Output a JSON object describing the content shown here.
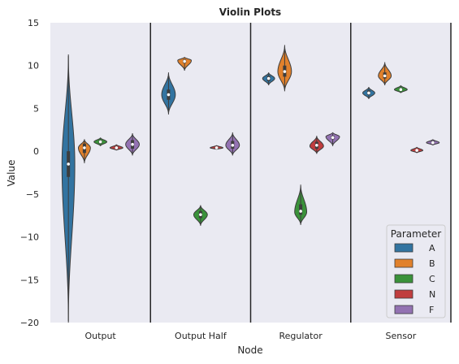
{
  "chart_data": {
    "type": "violin",
    "title": "Violin Plots",
    "xlabel": "Node",
    "ylabel": "Value",
    "ylim": [
      -20,
      15
    ],
    "yticks": [
      15,
      10,
      5,
      0,
      -5,
      -10,
      -15,
      -20
    ],
    "categories": [
      "Output",
      "Output Half",
      "Regulator",
      "Sensor"
    ],
    "legend": {
      "title": "Parameter",
      "placement": "bottom-right",
      "entries": [
        "A",
        "B",
        "C",
        "N",
        "F"
      ]
    },
    "colors": {
      "A": "#3274a1",
      "B": "#e1812c",
      "C": "#3a923a",
      "N": "#c03d3e",
      "F": "#9372b2"
    },
    "background": "#eaeaf2",
    "series": [
      {
        "name": "A",
        "violins": [
          {
            "category": "Output",
            "min": -20.0,
            "q1": -3.0,
            "median": -1.5,
            "q3": 0.0,
            "max": 11.3,
            "mode": -1.5,
            "maxwidth": 0.8
          },
          {
            "category": "Output Half",
            "min": 4.3,
            "q1": 6.0,
            "median": 6.6,
            "q3": 7.2,
            "max": 9.2,
            "mode": 6.6,
            "maxwidth": 0.85
          },
          {
            "category": "Regulator",
            "min": 7.7,
            "q1": 8.2,
            "median": 8.5,
            "q3": 8.8,
            "max": 9.2,
            "mode": 8.5,
            "maxwidth": 0.75
          },
          {
            "category": "Sensor",
            "min": 6.1,
            "q1": 6.6,
            "median": 6.8,
            "q3": 7.1,
            "max": 7.5,
            "mode": 6.8,
            "maxwidth": 0.75
          }
        ]
      },
      {
        "name": "B",
        "violins": [
          {
            "category": "Output",
            "min": -1.4,
            "q1": -0.2,
            "median": 0.4,
            "q3": 0.9,
            "max": 1.4,
            "mode": 0.4,
            "maxwidth": 0.75
          },
          {
            "category": "Output Half",
            "min": 9.4,
            "q1": 10.3,
            "median": 10.5,
            "q3": 10.7,
            "max": 11.0,
            "mode": 10.6,
            "maxwidth": 0.85
          },
          {
            "category": "Regulator",
            "min": 7.0,
            "q1": 8.7,
            "median": 9.3,
            "q3": 10.0,
            "max": 12.4,
            "mode": 9.3,
            "maxwidth": 0.85
          },
          {
            "category": "Sensor",
            "min": 7.7,
            "q1": 8.5,
            "median": 8.8,
            "q3": 9.2,
            "max": 10.4,
            "mode": 8.8,
            "maxwidth": 0.8
          }
        ]
      },
      {
        "name": "C",
        "violins": [
          {
            "category": "Output",
            "min": 0.6,
            "q1": 0.9,
            "median": 1.1,
            "q3": 1.3,
            "max": 1.6,
            "mode": 1.1,
            "maxwidth": 0.8
          },
          {
            "category": "Output Half",
            "min": -8.7,
            "q1": -7.8,
            "median": -7.4,
            "q3": -7.0,
            "max": -6.3,
            "mode": -7.4,
            "maxwidth": 0.85
          },
          {
            "category": "Regulator",
            "min": -8.6,
            "q1": -7.4,
            "median": -7.0,
            "q3": -6.2,
            "max": -3.9,
            "mode": -7.1,
            "maxwidth": 0.75
          },
          {
            "category": "Sensor",
            "min": 6.8,
            "q1": 7.1,
            "median": 7.2,
            "q3": 7.4,
            "max": 7.7,
            "mode": 7.2,
            "maxwidth": 0.8
          }
        ]
      },
      {
        "name": "N",
        "violins": [
          {
            "category": "Output",
            "min": 0.1,
            "q1": 0.3,
            "median": 0.4,
            "q3": 0.6,
            "max": 0.8,
            "mode": 0.4,
            "maxwidth": 0.8
          },
          {
            "category": "Output Half",
            "min": 0.2,
            "q1": 0.3,
            "median": 0.4,
            "q3": 0.5,
            "max": 0.7,
            "mode": 0.4,
            "maxwidth": 0.8
          },
          {
            "category": "Regulator",
            "min": -0.3,
            "q1": 0.3,
            "median": 0.7,
            "q3": 1.1,
            "max": 1.8,
            "mode": 0.6,
            "maxwidth": 0.85
          },
          {
            "category": "Sensor",
            "min": -0.2,
            "q1": 0.0,
            "median": 0.1,
            "q3": 0.2,
            "max": 0.5,
            "mode": 0.1,
            "maxwidth": 0.75
          }
        ]
      },
      {
        "name": "F",
        "violins": [
          {
            "category": "Output",
            "min": -0.5,
            "q1": 0.3,
            "median": 0.8,
            "q3": 1.3,
            "max": 2.1,
            "mode": 0.8,
            "maxwidth": 0.85
          },
          {
            "category": "Output Half",
            "min": -0.5,
            "q1": 0.3,
            "median": 0.7,
            "q3": 1.2,
            "max": 2.2,
            "mode": 0.7,
            "maxwidth": 0.85
          },
          {
            "category": "Regulator",
            "min": 0.6,
            "q1": 1.4,
            "median": 1.6,
            "q3": 1.8,
            "max": 2.2,
            "mode": 1.7,
            "maxwidth": 0.85
          },
          {
            "category": "Sensor",
            "min": 0.7,
            "q1": 0.9,
            "median": 1.0,
            "q3": 1.2,
            "max": 1.4,
            "mode": 1.0,
            "maxwidth": 0.8
          }
        ]
      }
    ]
  }
}
